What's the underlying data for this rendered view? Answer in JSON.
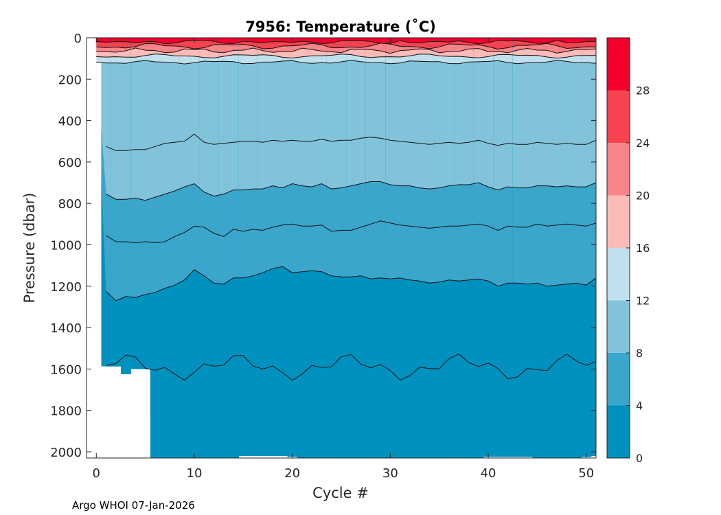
{
  "chart_data": {
    "type": "heatmap",
    "subtype": "filled-contour",
    "title": "7956:  Temperature (˚C)",
    "xlabel": "Cycle #",
    "ylabel": "Pressure (dbar)",
    "xlim": [
      -1,
      51
    ],
    "ylim": [
      2030,
      0
    ],
    "xticks": [
      0,
      10,
      20,
      30,
      40,
      50
    ],
    "xtick_labels": [
      "0",
      "10",
      "20",
      "30",
      "40",
      "50"
    ],
    "yticks": [
      0,
      200,
      400,
      600,
      800,
      1000,
      1200,
      1400,
      1600,
      1800,
      2000
    ],
    "ytick_labels": [
      "0",
      "200",
      "400",
      "600",
      "800",
      "1000",
      "1200",
      "1400",
      "1600",
      "1800",
      "2000"
    ],
    "colorbar": {
      "levels": [
        0,
        4,
        8,
        12,
        16,
        20,
        24,
        28,
        32
      ],
      "colors": [
        "#0091be",
        "#3ba6cb",
        "#82c3dc",
        "#bfe0ec",
        "#fbbcb9",
        "#f78489",
        "#f6434f",
        "#f5002c"
      ],
      "tick_values": [
        0,
        4,
        8,
        12,
        16,
        20,
        24,
        28
      ],
      "tick_labels": [
        "0",
        "4",
        "8",
        "12",
        "16",
        "20",
        "24",
        "28"
      ]
    },
    "cycles": [
      0,
      1,
      2,
      3,
      4,
      5,
      6,
      7,
      8,
      9,
      10,
      11,
      12,
      13,
      14,
      15,
      16,
      17,
      18,
      19,
      20,
      21,
      22,
      23,
      24,
      25,
      26,
      27,
      28,
      29,
      30,
      31,
      32,
      33,
      34,
      35,
      36,
      37,
      38,
      39,
      40,
      41,
      42,
      43,
      44,
      45,
      46,
      47,
      48,
      49,
      50,
      51
    ],
    "profile_max_depth": [
      118,
      1588,
      1588,
      1625,
      1600,
      1600,
      2030,
      2030,
      2030,
      2030,
      2030,
      2030,
      2030,
      2030,
      2030,
      2020,
      2020,
      2020,
      2020,
      2020,
      2025,
      2030,
      2030,
      2030,
      2030,
      2030,
      2030,
      2030,
      2030,
      2030,
      2030,
      2030,
      2030,
      2030,
      2030,
      2030,
      2030,
      2030,
      2030,
      2030,
      2025,
      2025,
      2025,
      2025,
      2025,
      2030,
      2030,
      2030,
      2030,
      2030,
      2025,
      2020
    ],
    "isotherm_depths": [
      {
        "temperature": 4,
        "depths": [
          null,
          1225,
          1270,
          1250,
          1255,
          1240,
          1230,
          1210,
          1195,
          1170,
          1120,
          1150,
          1185,
          1190,
          1160,
          1160,
          1150,
          1135,
          1115,
          1105,
          1135,
          1130,
          1125,
          1130,
          1150,
          1155,
          1155,
          1150,
          1165,
          1160,
          1165,
          1160,
          1170,
          1175,
          1185,
          1180,
          1170,
          1175,
          1170,
          1165,
          1175,
          1200,
          1185,
          1185,
          1190,
          1185,
          1200,
          1195,
          1190,
          1185,
          1195,
          1160
        ]
      },
      {
        "temperature": 6,
        "depths": [
          null,
          955,
          985,
          985,
          990,
          985,
          990,
          985,
          960,
          940,
          910,
          915,
          945,
          960,
          925,
          935,
          925,
          930,
          915,
          905,
          900,
          910,
          910,
          905,
          935,
          930,
          930,
          915,
          900,
          885,
          895,
          905,
          910,
          915,
          920,
          915,
          910,
          910,
          905,
          900,
          910,
          930,
          910,
          915,
          915,
          900,
          910,
          905,
          900,
          905,
          910,
          895
        ]
      },
      {
        "temperature": 8,
        "depths": [
          null,
          755,
          780,
          780,
          775,
          785,
          770,
          755,
          740,
          720,
          705,
          745,
          765,
          755,
          735,
          735,
          730,
          730,
          715,
          725,
          705,
          715,
          720,
          705,
          730,
          725,
          715,
          705,
          695,
          695,
          710,
          715,
          715,
          725,
          730,
          725,
          715,
          710,
          710,
          700,
          720,
          735,
          720,
          725,
          725,
          715,
          715,
          720,
          715,
          720,
          720,
          700
        ]
      },
      {
        "temperature": 10,
        "depths": [
          null,
          525,
          545,
          545,
          540,
          540,
          525,
          510,
          505,
          500,
          465,
          505,
          515,
          510,
          505,
          500,
          500,
          505,
          495,
          500,
          495,
          500,
          500,
          490,
          500,
          495,
          495,
          485,
          480,
          485,
          495,
          500,
          505,
          510,
          515,
          510,
          505,
          510,
          505,
          495,
          510,
          520,
          510,
          515,
          515,
          505,
          510,
          515,
          510,
          515,
          515,
          495
        ]
      }
    ],
    "annotation": "Argo WHOI 07-Jan-2026"
  }
}
